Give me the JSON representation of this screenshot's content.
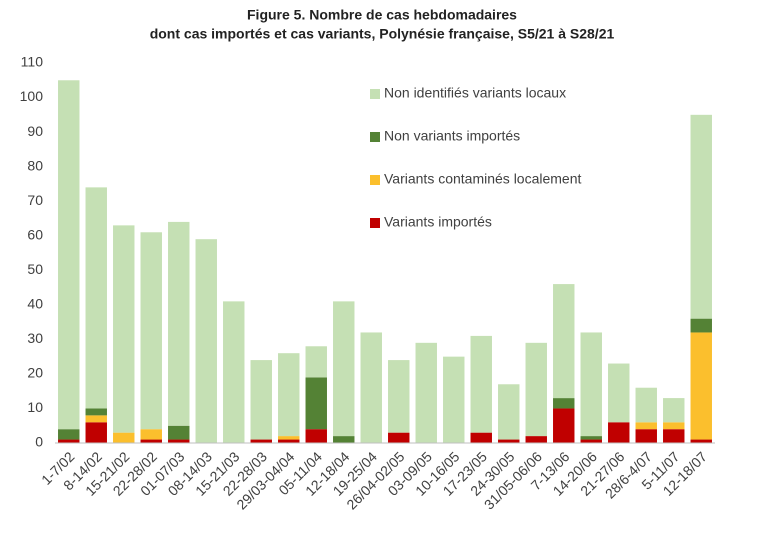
{
  "chart_data": {
    "type": "stacked-bar",
    "title": [
      "Figure 5. Nombre de cas hebdomadaires",
      "dont cas importés et cas variants, Polynésie française, S5/21 à S28/21"
    ],
    "categories": [
      "1-7/02",
      "8-14/02",
      "15-21/02",
      "22-28/02",
      "01-07/03",
      "08-14/03",
      "15-21/03",
      "22-28/03",
      "29/03-04/04",
      "05-11/04",
      "12-18/04",
      "19-25/04",
      "26/04-02/05",
      "03-09/05",
      "10-16/05",
      "17-23/05",
      "24-30/05",
      "31/05-06/06",
      "7-13/06",
      "14-20/06",
      "21-27/06",
      "28/6-4/07",
      "5-11/07",
      "12-18/07"
    ],
    "series": [
      {
        "name": "Variants importés",
        "color": "#c00000",
        "values": [
          1,
          6,
          0,
          1,
          1,
          0,
          0,
          1,
          1,
          4,
          0,
          0,
          3,
          0,
          0,
          3,
          1,
          2,
          10,
          1,
          6,
          4,
          4,
          1
        ]
      },
      {
        "name": "Variants contaminés localement",
        "color": "#fbbf2d",
        "values": [
          0,
          2,
          3,
          3,
          0,
          0,
          0,
          0,
          1,
          0,
          0,
          0,
          0,
          0,
          0,
          0,
          0,
          0,
          0,
          0,
          0,
          2,
          2,
          31
        ]
      },
      {
        "name": "Non variants importés",
        "color": "#548235",
        "values": [
          3,
          2,
          0,
          0,
          4,
          0,
          0,
          0,
          0,
          15,
          2,
          0,
          0,
          0,
          0,
          0,
          0,
          0,
          3,
          1,
          0,
          0,
          0,
          4
        ]
      },
      {
        "name": "Non identifiés variants locaux",
        "color": "#c5e0b4",
        "values": [
          101,
          64,
          60,
          57,
          59,
          59,
          41,
          23,
          24,
          9,
          39,
          32,
          21,
          29,
          25,
          28,
          16,
          27,
          33,
          30,
          17,
          10,
          7,
          59
        ]
      }
    ],
    "ylim": [
      0,
      110
    ],
    "yticks": [
      0,
      10,
      20,
      30,
      40,
      50,
      60,
      70,
      80,
      90,
      100,
      110
    ],
    "grid": false
  }
}
